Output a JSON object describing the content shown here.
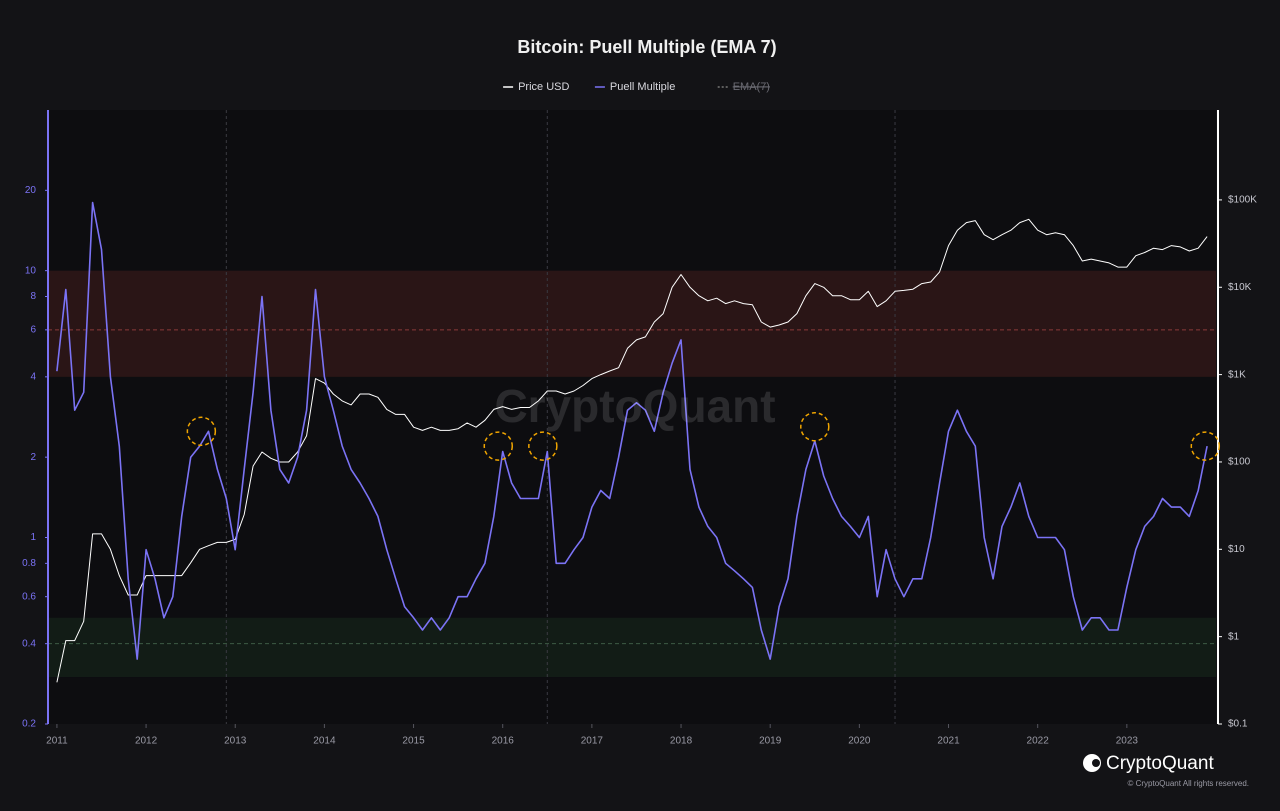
{
  "chart_data": {
    "type": "line",
    "title": "Bitcoin: Puell Multiple (EMA 7)",
    "watermark": "CryptoQuant",
    "logo_text": "CryptoQuant",
    "copyright": "© CryptoQuant All rights reserved.",
    "log_scale": true,
    "legend": "top",
    "xlim": [
      2010.9,
      2024.0
    ],
    "xticks": [
      2011,
      2012,
      2013,
      2014,
      2015,
      2016,
      2017,
      2018,
      2019,
      2020,
      2021,
      2022,
      2023
    ],
    "ylim": [
      0.2,
      40
    ],
    "yticks": [
      0.2,
      0.4,
      0.6,
      0.8,
      1,
      2,
      4,
      6,
      8,
      10,
      20
    ],
    "y2lim": [
      0.1,
      1070000
    ],
    "y2ticks": [
      {
        "value": 0.1,
        "label": "$0.1"
      },
      {
        "value": 1,
        "label": "$1"
      },
      {
        "value": 10,
        "label": "$10"
      },
      {
        "value": 100,
        "label": "$100"
      },
      {
        "value": 1000,
        "label": "$1K"
      },
      {
        "value": 10000,
        "label": "$10K"
      },
      {
        "value": 100000,
        "label": "$100K"
      }
    ],
    "bands": [
      {
        "from": 4,
        "to": 10,
        "color": "#2a1516"
      },
      {
        "from": 0.3,
        "to": 0.5,
        "color": "#121c16"
      }
    ],
    "hlines": [
      {
        "value": 6,
        "color": "#8a3a3a"
      },
      {
        "value": 0.4,
        "color": "#3d5a44"
      }
    ],
    "vlines": [
      2012.9,
      2016.5,
      2020.4
    ],
    "highlights": [
      {
        "x": 2012.62,
        "y": 2.5
      },
      {
        "x": 2015.95,
        "y": 2.2
      },
      {
        "x": 2016.45,
        "y": 2.2
      },
      {
        "x": 2019.5,
        "y": 2.6
      },
      {
        "x": 2023.88,
        "y": 2.2
      }
    ],
    "x": [
      2011.0,
      2011.1,
      2011.2,
      2011.3,
      2011.4,
      2011.5,
      2011.6,
      2011.7,
      2011.8,
      2011.9,
      2012.0,
      2012.1,
      2012.2,
      2012.3,
      2012.4,
      2012.5,
      2012.6,
      2012.7,
      2012.8,
      2012.9,
      2013.0,
      2013.1,
      2013.2,
      2013.3,
      2013.4,
      2013.5,
      2013.6,
      2013.7,
      2013.8,
      2013.9,
      2014.0,
      2014.1,
      2014.2,
      2014.3,
      2014.4,
      2014.5,
      2014.6,
      2014.7,
      2014.8,
      2014.9,
      2015.0,
      2015.1,
      2015.2,
      2015.3,
      2015.4,
      2015.5,
      2015.6,
      2015.7,
      2015.8,
      2015.9,
      2016.0,
      2016.1,
      2016.2,
      2016.3,
      2016.4,
      2016.5,
      2016.6,
      2016.7,
      2016.8,
      2016.9,
      2017.0,
      2017.1,
      2017.2,
      2017.3,
      2017.4,
      2017.5,
      2017.6,
      2017.7,
      2017.8,
      2017.9,
      2018.0,
      2018.1,
      2018.2,
      2018.3,
      2018.4,
      2018.5,
      2018.6,
      2018.7,
      2018.8,
      2018.9,
      2019.0,
      2019.1,
      2019.2,
      2019.3,
      2019.4,
      2019.5,
      2019.6,
      2019.7,
      2019.8,
      2019.9,
      2020.0,
      2020.1,
      2020.2,
      2020.3,
      2020.4,
      2020.5,
      2020.6,
      2020.7,
      2020.8,
      2020.9,
      2021.0,
      2021.1,
      2021.2,
      2021.3,
      2021.4,
      2021.5,
      2021.6,
      2021.7,
      2021.8,
      2021.9,
      2022.0,
      2022.1,
      2022.2,
      2022.3,
      2022.4,
      2022.5,
      2022.6,
      2022.7,
      2022.8,
      2022.9,
      2023.0,
      2023.1,
      2023.2,
      2023.3,
      2023.4,
      2023.5,
      2023.6,
      2023.7,
      2023.8,
      2023.9
    ],
    "series": [
      {
        "name": "Price USD",
        "color": "#ffffff",
        "axis": "y2",
        "values": [
          0.3,
          0.9,
          0.9,
          1.5,
          15,
          15,
          10,
          5,
          3,
          3,
          5,
          5,
          5,
          5,
          5,
          7,
          10,
          11,
          12,
          12,
          13,
          25,
          90,
          130,
          110,
          100,
          100,
          130,
          200,
          900,
          800,
          600,
          500,
          450,
          600,
          600,
          550,
          400,
          350,
          350,
          250,
          230,
          250,
          230,
          230,
          240,
          280,
          250,
          300,
          400,
          430,
          400,
          420,
          420,
          500,
          650,
          650,
          600,
          650,
          750,
          900,
          1000,
          1100,
          1200,
          2000,
          2500,
          2700,
          4000,
          5000,
          10000,
          14000,
          10000,
          8000,
          7000,
          7500,
          6500,
          7000,
          6500,
          6300,
          4000,
          3500,
          3700,
          4000,
          5000,
          8000,
          11000,
          10000,
          8000,
          8000,
          7200,
          7200,
          9000,
          6000,
          7000,
          9000,
          9200,
          9500,
          11000,
          11500,
          15000,
          30000,
          45000,
          55000,
          58000,
          40000,
          35000,
          40000,
          45000,
          55000,
          60000,
          45000,
          40000,
          42000,
          40000,
          30000,
          20000,
          21000,
          20000,
          19000,
          17000,
          17000,
          23000,
          25000,
          28000,
          27000,
          30000,
          29000,
          26000,
          28000,
          38000
        ]
      },
      {
        "name": "Puell Multiple",
        "color": "#7b73f5",
        "values": [
          4.2,
          8.5,
          3.0,
          3.5,
          18,
          12,
          4,
          2.2,
          0.7,
          0.35,
          0.9,
          0.7,
          0.5,
          0.6,
          1.2,
          2.0,
          2.2,
          2.5,
          1.8,
          1.4,
          0.9,
          1.8,
          3.5,
          8,
          3,
          1.8,
          1.6,
          2.0,
          3,
          8.5,
          4,
          3.0,
          2.2,
          1.8,
          1.6,
          1.4,
          1.2,
          0.9,
          0.7,
          0.55,
          0.5,
          0.45,
          0.5,
          0.45,
          0.5,
          0.6,
          0.6,
          0.7,
          0.8,
          1.2,
          2.1,
          1.6,
          1.4,
          1.4,
          1.4,
          2.1,
          0.8,
          0.8,
          0.9,
          1.0,
          1.3,
          1.5,
          1.4,
          2.0,
          3.0,
          3.2,
          3.0,
          2.5,
          3.5,
          4.5,
          5.5,
          1.8,
          1.3,
          1.1,
          1.0,
          0.8,
          0.75,
          0.7,
          0.65,
          0.45,
          0.35,
          0.55,
          0.7,
          1.2,
          1.8,
          2.3,
          1.7,
          1.4,
          1.2,
          1.1,
          1.0,
          1.2,
          0.6,
          0.9,
          0.7,
          0.6,
          0.7,
          0.7,
          1.0,
          1.6,
          2.5,
          3.0,
          2.5,
          2.2,
          1.0,
          0.7,
          1.1,
          1.3,
          1.6,
          1.2,
          1.0,
          1.0,
          1.0,
          0.9,
          0.6,
          0.45,
          0.5,
          0.5,
          0.45,
          0.45,
          0.65,
          0.9,
          1.1,
          1.2,
          1.4,
          1.3,
          1.3,
          1.2,
          1.5,
          2.2
        ]
      },
      {
        "name": "EMA(7)",
        "color": "#777777",
        "hidden": true
      }
    ]
  }
}
